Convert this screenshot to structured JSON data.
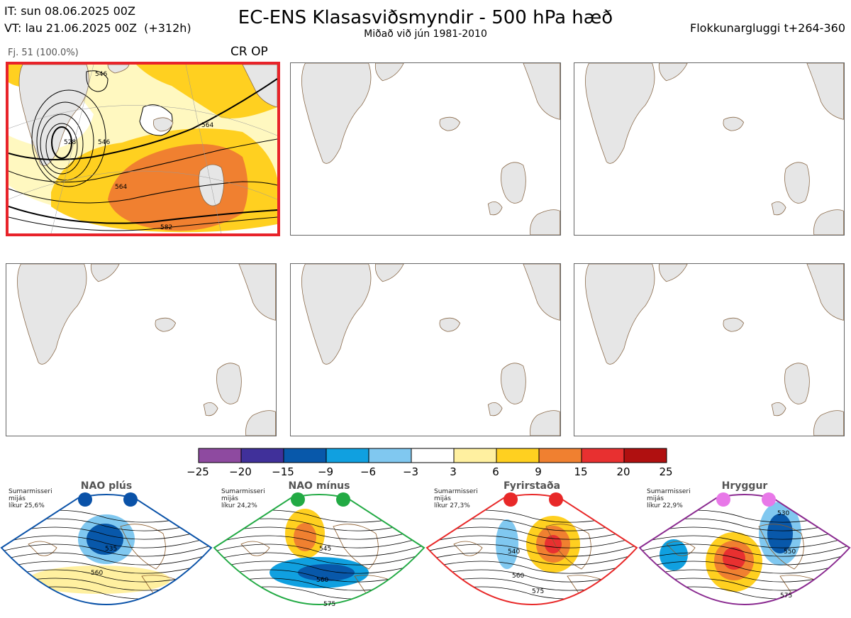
{
  "header": {
    "it": "IT: sun 08.06.2025 00Z",
    "vt": "VT: lau 21.06.2025 00Z  (+312h)",
    "title": "EC-ENS Klasasviðsmyndir - 500 hPa hæð",
    "subtitle": "Miðað við jún 1981-2010",
    "window": "Flokkunargluggi t+264-360"
  },
  "cluster_panel": {
    "member_label": "Fj. 51 (100.0%)",
    "tag": "CR OP",
    "contour_labels": [
      "546",
      "528",
      "546",
      "564",
      "564",
      "582"
    ]
  },
  "colorbar": {
    "colors": [
      "#8e4aa0",
      "#40309a",
      "#0858aa",
      "#10a0e0",
      "#80c8f0",
      "#ffffff",
      "#fff0a0",
      "#ffd020",
      "#f08030",
      "#e83030",
      "#b01010"
    ],
    "labels": [
      "−25",
      "−20",
      "−15",
      "−9",
      "−6",
      "−3",
      "3",
      "6",
      "9",
      "15",
      "20",
      "25"
    ]
  },
  "regimes": [
    {
      "name": "NAO plús",
      "season": "Sumarmisseri",
      "mean": "mijás",
      "likelihood": "líkur 25,6%",
      "dot_color": "#0a52a8",
      "frame_color": "#0a52a8",
      "contours": [
        "535",
        "560"
      ]
    },
    {
      "name": "NAO mínus",
      "season": "Sumarmisseri",
      "mean": "mijás",
      "likelihood": "líkur 24,2%",
      "dot_color": "#22aa44",
      "frame_color": "#22aa44",
      "contours": [
        "545",
        "560",
        "575"
      ]
    },
    {
      "name": "Fyrirstaða",
      "season": "Sumarmisseri",
      "mean": "mijás",
      "likelihood": "líkur 27,3%",
      "dot_color": "#e82828",
      "frame_color": "#e82828",
      "contours": [
        "540",
        "560",
        "575"
      ]
    },
    {
      "name": "Hryggur",
      "season": "Sumarmisseri",
      "mean": "mijás",
      "likelihood": "líkur 22,9%",
      "dot_color": "#e878e8",
      "frame_color": "#8a2a90",
      "contours": [
        "530",
        "550",
        "575"
      ]
    }
  ]
}
